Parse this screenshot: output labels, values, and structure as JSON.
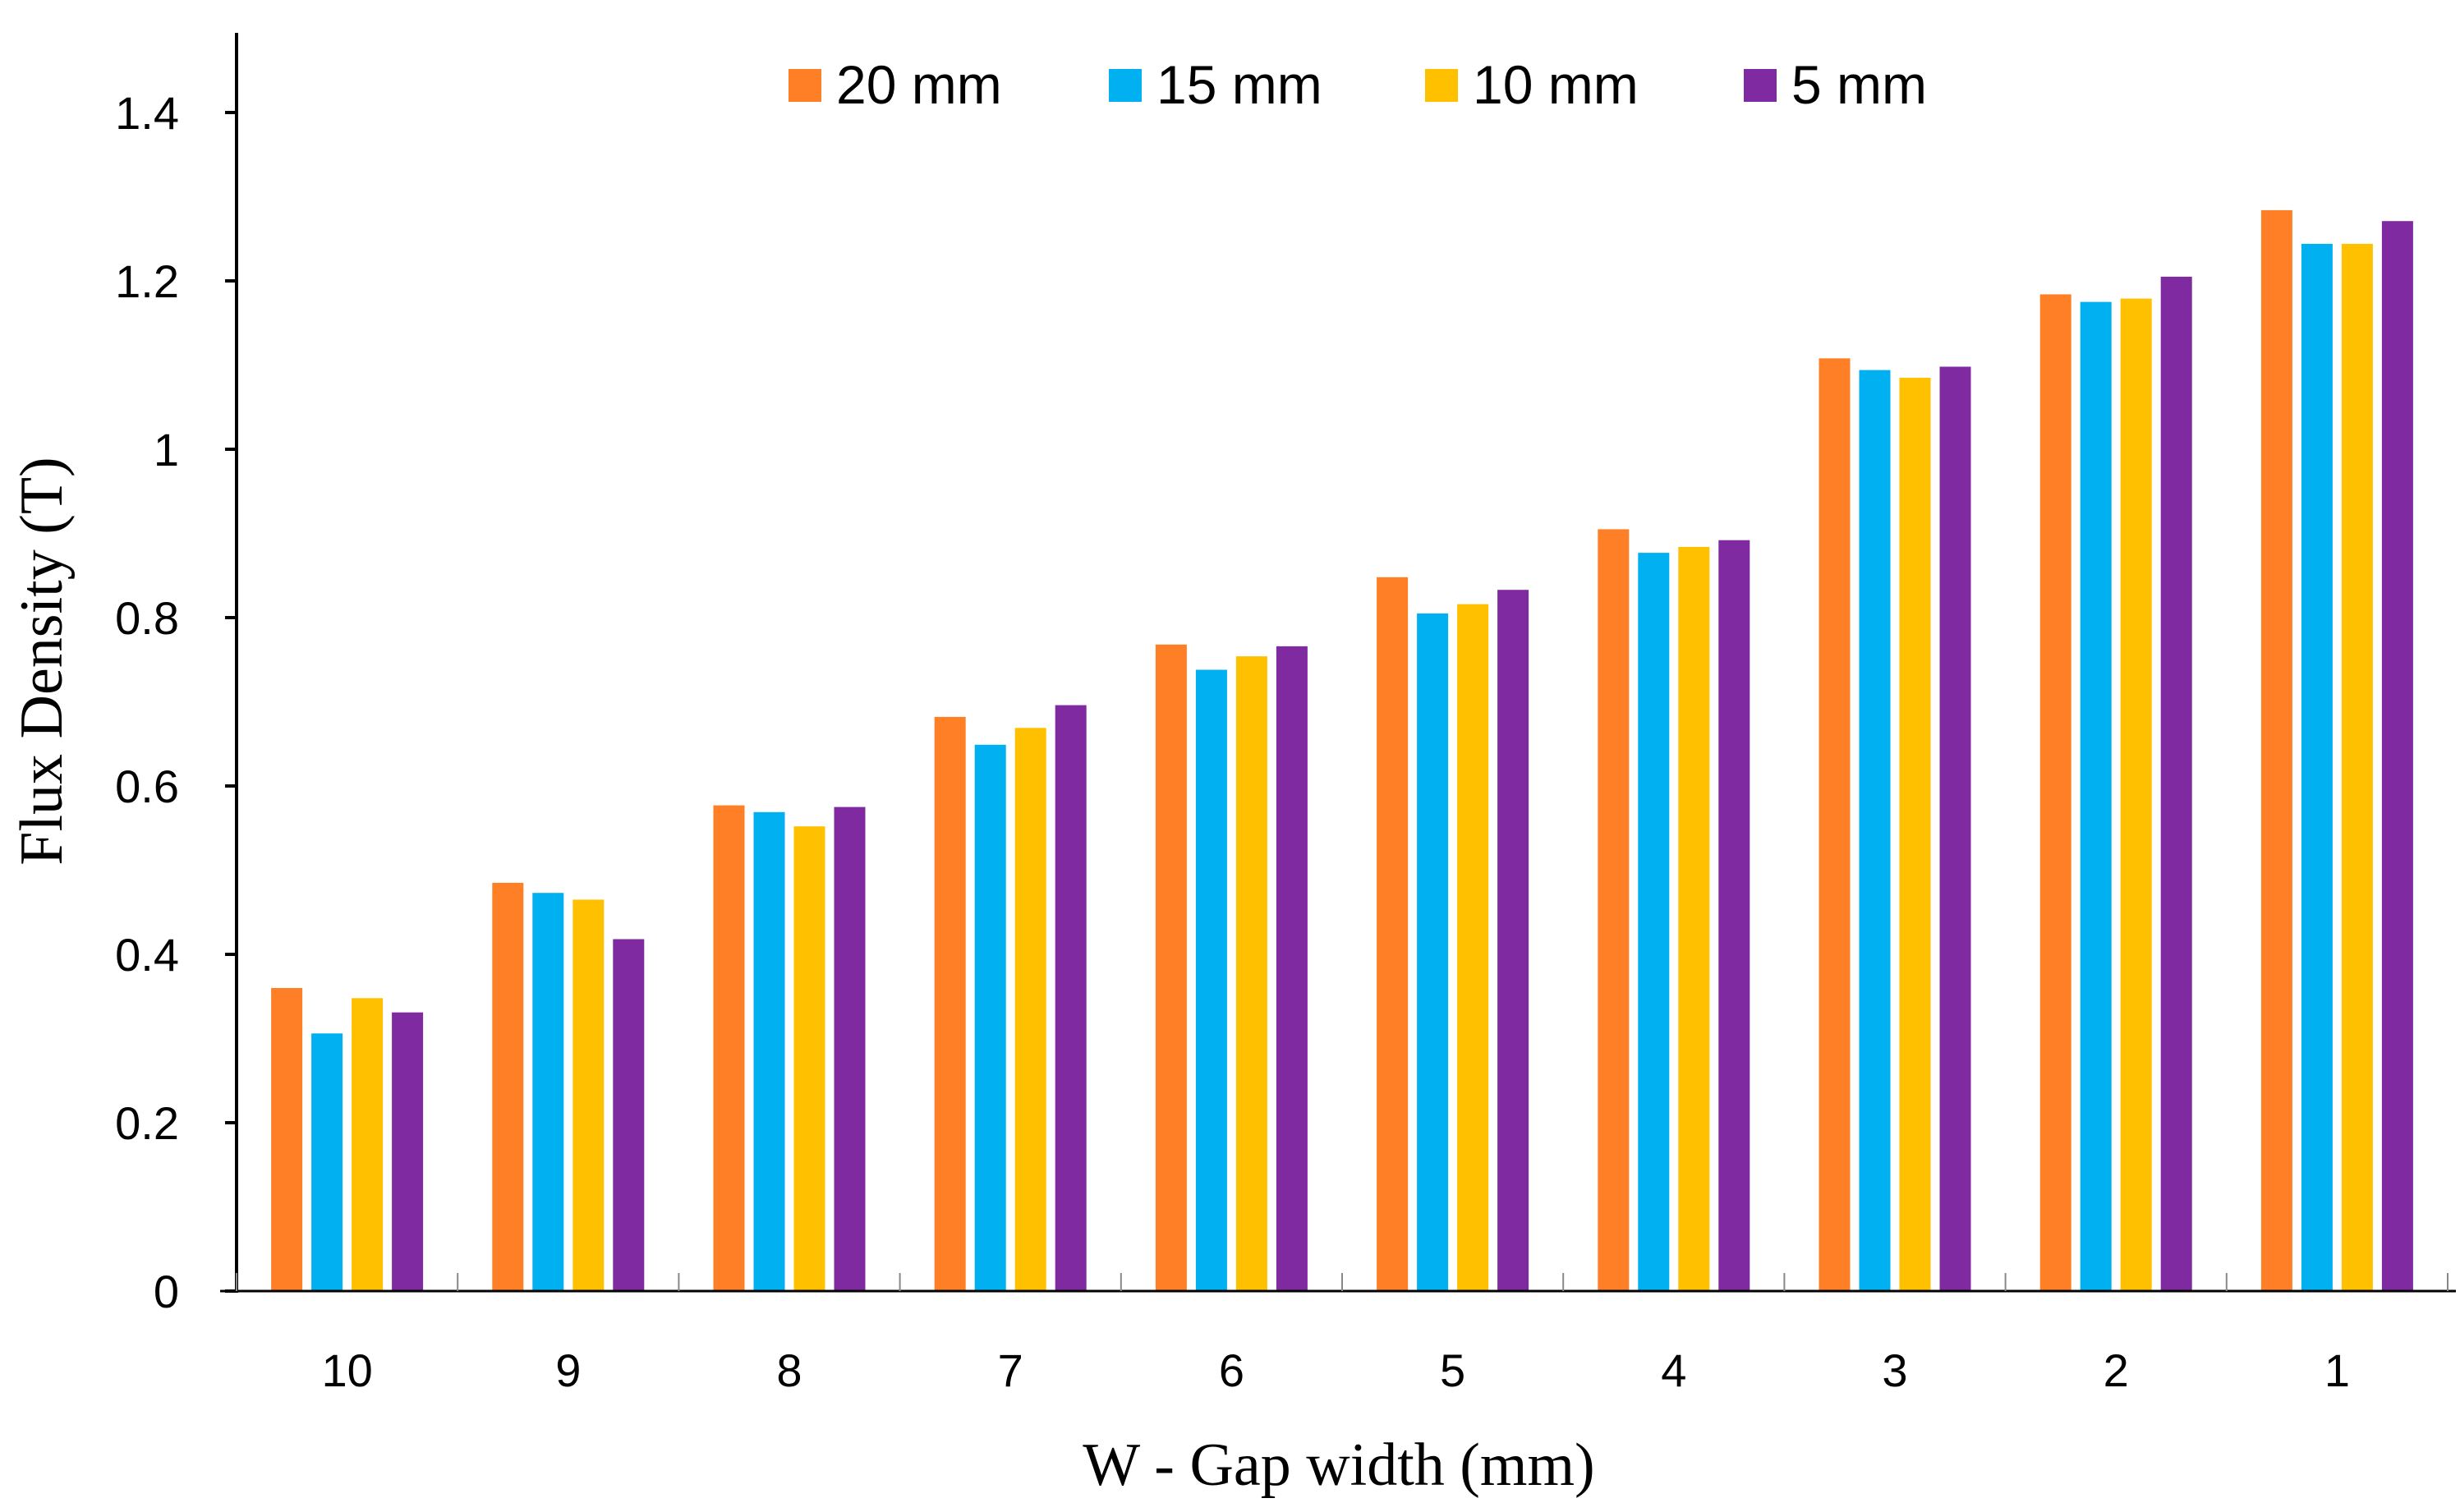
{
  "chart_data": {
    "type": "bar",
    "title": "",
    "xlabel": "W -  Gap width (mm)",
    "ylabel": "Flux Density (T)",
    "categories": [
      "10",
      "9",
      "8",
      "7",
      "6",
      "5",
      "4",
      "3",
      "2",
      "1"
    ],
    "ylim": [
      0,
      1.5
    ],
    "yticks": [
      0,
      0.2,
      0.4,
      0.6,
      0.8,
      1,
      1.2,
      1.4
    ],
    "ytick_labels": [
      "0",
      "0.2",
      "0.4",
      "0.6",
      "0.8",
      "1",
      "1.2",
      "1.4"
    ],
    "grid": false,
    "legend_position": "top",
    "series": [
      {
        "name": "20 mm",
        "color": "#FF7F27",
        "values": [
          0.36,
          0.485,
          0.577,
          0.682,
          0.768,
          0.848,
          0.905,
          1.108,
          1.184,
          1.284
        ]
      },
      {
        "name": "15 mm",
        "color": "#00B0F0",
        "values": [
          0.306,
          0.473,
          0.569,
          0.649,
          0.738,
          0.805,
          0.877,
          1.094,
          1.175,
          1.244
        ]
      },
      {
        "name": "10 mm",
        "color": "#FFC000",
        "values": [
          0.348,
          0.465,
          0.552,
          0.669,
          0.754,
          0.816,
          0.884,
          1.085,
          1.179,
          1.244
        ]
      },
      {
        "name": "5 mm",
        "color": "#7F2AA0",
        "values": [
          0.331,
          0.418,
          0.575,
          0.696,
          0.766,
          0.833,
          0.892,
          1.098,
          1.205,
          1.271
        ]
      }
    ]
  }
}
